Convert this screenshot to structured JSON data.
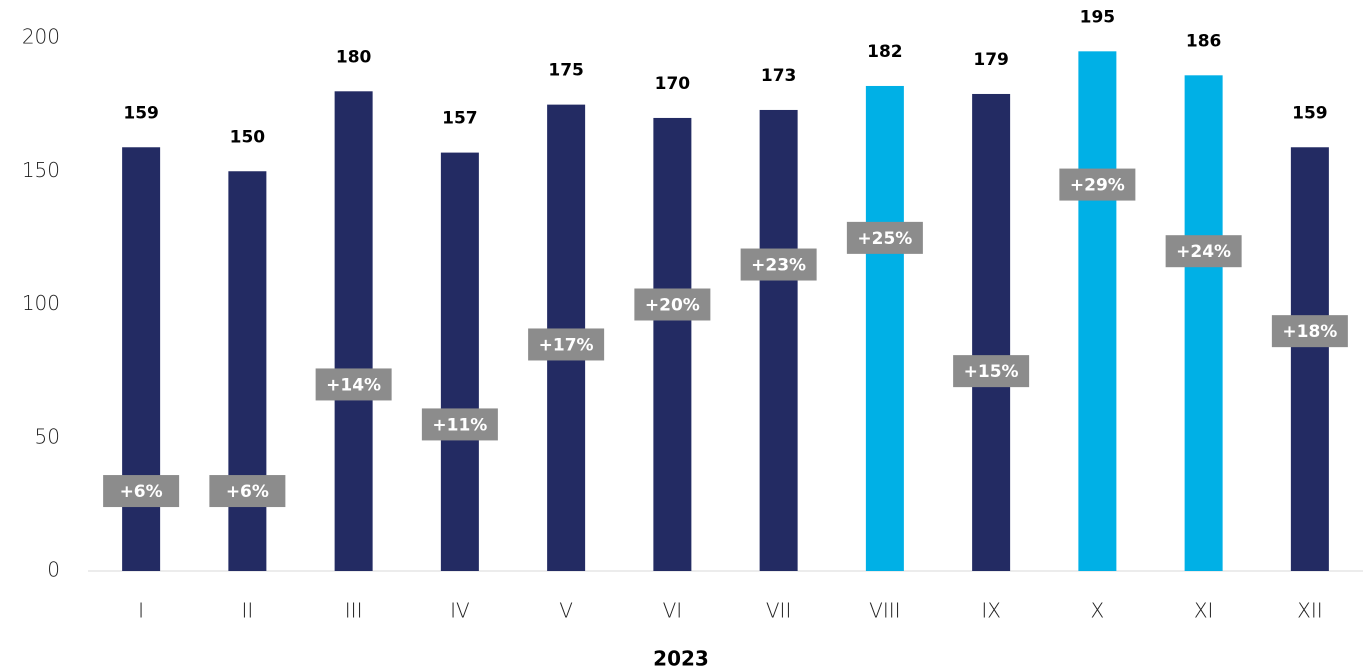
{
  "chart_data": {
    "type": "bar",
    "xlabel": "2023",
    "categories": [
      "I",
      "II",
      "III",
      "IV",
      "V",
      "VI",
      "VII",
      "VIII",
      "IX",
      "X",
      "XI",
      "XII"
    ],
    "values": [
      159,
      150,
      180,
      157,
      175,
      170,
      173,
      182,
      179,
      195,
      186,
      159
    ],
    "colors": [
      "#232b63",
      "#232b63",
      "#232b63",
      "#232b63",
      "#232b63",
      "#232b63",
      "#232b63",
      "#00b0e6",
      "#232b63",
      "#00b0e6",
      "#00b0e6",
      "#232b63"
    ],
    "ylim": [
      0,
      200
    ],
    "yticks": [
      0,
      50,
      100,
      150,
      200
    ],
    "growth": {
      "axis": "y2",
      "color": "#8c8c8c",
      "values": [
        6,
        6,
        14,
        11,
        17,
        20,
        23,
        25,
        15,
        29,
        24,
        18
      ],
      "value_labels": [
        "+6%",
        "+6%",
        "+14%",
        "+11%",
        "+17%",
        "+20%",
        "+23%",
        "+25%",
        "+15%",
        "+29%",
        "+24%",
        "+18%"
      ]
    },
    "y2lim": [
      0,
      40
    ]
  }
}
